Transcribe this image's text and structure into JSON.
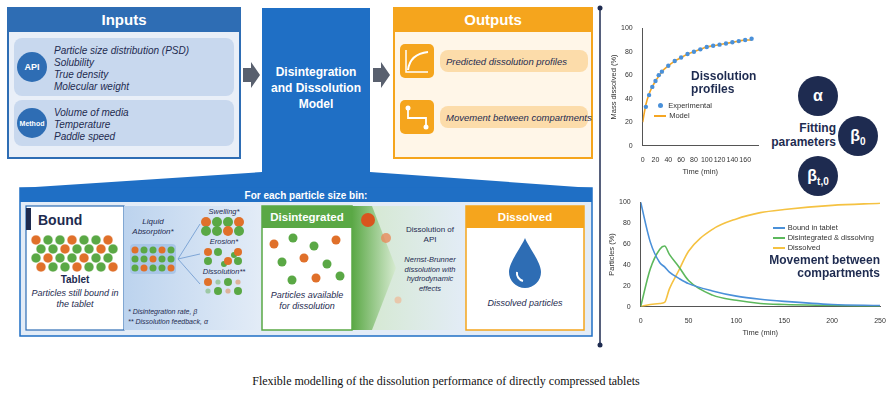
{
  "diagram": {
    "inputs": {
      "title": "Inputs",
      "groups": [
        {
          "icon": "API",
          "items": [
            "Particle size distribution (PSD)",
            "Solubility",
            "True density",
            "Molecular weight"
          ]
        },
        {
          "icon": "Method",
          "items": [
            "Volume of media",
            "Temperature",
            "Paddle speed"
          ]
        }
      ]
    },
    "model": {
      "title": "Disintegration and Dissolution Model"
    },
    "outputs": {
      "title": "Outputs",
      "items": [
        "Predicted dissolution profiles",
        "Movement between compartments"
      ]
    },
    "panel": {
      "title": "For each particle size bin:",
      "bound": {
        "title": "Bound",
        "icon_label": "Tablet",
        "text": "Particles still bound in the tablet"
      },
      "mechanisms": {
        "absorption": "Liquid Absorption*",
        "steps": [
          "Swelling*",
          "Erosion*",
          "Dissolution**"
        ],
        "footnotes": [
          "* Disintegration rate, β",
          "** Dissolution feedback, α"
        ]
      },
      "disintegrated": {
        "title": "Disintegrated",
        "text": "Particles available for dissolution"
      },
      "transfer": {
        "label": "Dissolution of API",
        "text": "Nernst-Brunner dissolution with hydrodynamic effects"
      },
      "dissolved": {
        "title": "Dissolved",
        "text": "Dissolved particles"
      }
    },
    "fitting_parameters": {
      "title": "Fitting parameters",
      "parameters": [
        {
          "symbol": "α"
        },
        {
          "symbol": "β",
          "subscript": "0"
        },
        {
          "symbol": "β",
          "subscript": "t,0"
        }
      ]
    },
    "caption": "Flexible modelling of the dissolution performance of directly compressed tablets"
  },
  "chart_data": [
    {
      "type": "line",
      "annotation": "Dissolution profiles",
      "x_label": "Time (min)",
      "y_label": "Mass dissolved (%)",
      "x": [
        0,
        5,
        10,
        15,
        20,
        25,
        30,
        40,
        50,
        60,
        70,
        80,
        90,
        100,
        110,
        120,
        130,
        140,
        150,
        160,
        170
      ],
      "series": [
        {
          "name": "Experimental",
          "type": "scatter",
          "marker": "circle",
          "color": "#4a90d9",
          "values": [
            null,
            33,
            43,
            50,
            55,
            60,
            63,
            68,
            72,
            75,
            78,
            80,
            82,
            84,
            85,
            86,
            87,
            88,
            89,
            90,
            91
          ]
        },
        {
          "name": "Model",
          "type": "line",
          "line_style": "solid",
          "color": "#f5a623",
          "values": [
            20,
            35,
            44,
            50,
            55,
            59,
            63,
            68,
            72,
            75,
            78,
            80,
            82,
            84,
            85,
            86,
            87,
            88,
            89,
            90,
            90
          ]
        }
      ],
      "xlim": [
        0,
        180
      ],
      "xticks": [
        0,
        20,
        40,
        60,
        80,
        100,
        120,
        140,
        160
      ],
      "ylim": [
        0,
        100
      ],
      "yticks": [
        0,
        20,
        40,
        60,
        80,
        100
      ],
      "grid": false,
      "legend": "lower left"
    },
    {
      "type": "line",
      "annotation": "Movement between compartments",
      "x_label": "Time (min)",
      "y_label": "Particles (%)",
      "x": [
        0,
        10,
        20,
        25,
        30,
        40,
        50,
        75,
        100,
        125,
        150,
        200,
        250
      ],
      "series": [
        {
          "name": "Bound in tablet",
          "color": "#4a90d9",
          "values": [
            100,
            62,
            42,
            38,
            33,
            27,
            22,
            15,
            10,
            7,
            5,
            2,
            1
          ]
        },
        {
          "name": "Disintegrated & dissolving",
          "color": "#5cb85c",
          "values": [
            0,
            36,
            55,
            58,
            50,
            38,
            25,
            11,
            6,
            3,
            2,
            1,
            0
          ]
        },
        {
          "name": "Dissolved",
          "color": "#f5c242",
          "values": [
            0,
            2,
            3,
            4,
            17,
            35,
            53,
            74,
            84,
            90,
            93,
            97,
            99
          ]
        }
      ],
      "xlim": [
        0,
        250
      ],
      "xticks": [
        0,
        50,
        100,
        150,
        200,
        250
      ],
      "ylim": [
        0,
        100
      ],
      "yticks": [
        0,
        20,
        40,
        60,
        80,
        100
      ],
      "grid": false,
      "legend": "right"
    }
  ]
}
